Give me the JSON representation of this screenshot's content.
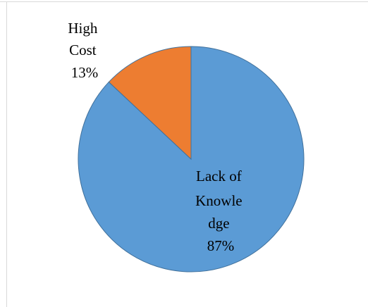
{
  "chart_data": {
    "type": "pie",
    "title": "",
    "slices": [
      {
        "label_lines": [
          "Lack of",
          "Knowle",
          "dge",
          "87%"
        ],
        "value": 87,
        "color": "#5b9bd5"
      },
      {
        "label_lines": [
          "High",
          "Cost",
          "13%"
        ],
        "value": 13,
        "color": "#ed7d31"
      }
    ],
    "legend": "none",
    "slice_border_color": "#41719c"
  }
}
